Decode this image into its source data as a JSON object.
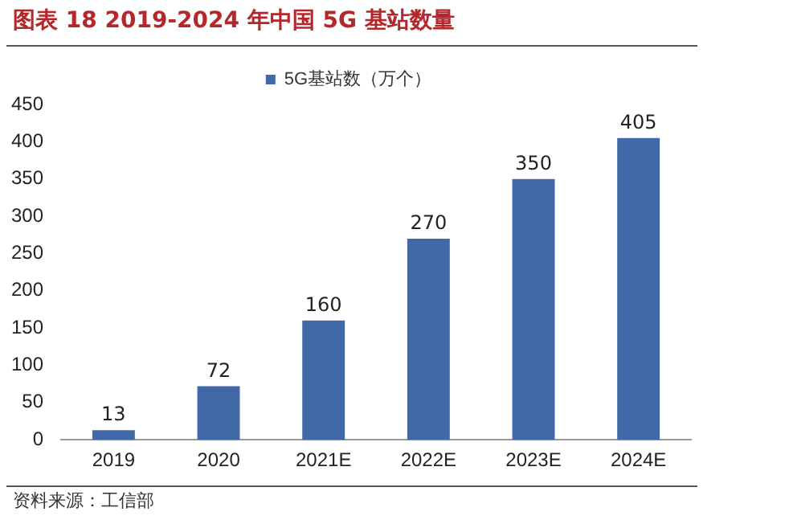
{
  "chart_data": {
    "type": "bar",
    "title": "图表 18 2019-2024 年中国 5G 基站数量",
    "categories": [
      "2019",
      "2020",
      "2021E",
      "2022E",
      "2023E",
      "2024E"
    ],
    "series": [
      {
        "name": "5G基站数（万个）",
        "color": "#4169a8",
        "values": [
          13,
          72,
          160,
          270,
          350,
          405
        ]
      }
    ],
    "ylim": [
      0,
      450
    ],
    "yticks": [
      0,
      50,
      100,
      150,
      200,
      250,
      300,
      350,
      400,
      450
    ],
    "grid": false,
    "legend": "top",
    "data_labels": true,
    "annotations": [
      "资料来源：工信部"
    ]
  }
}
